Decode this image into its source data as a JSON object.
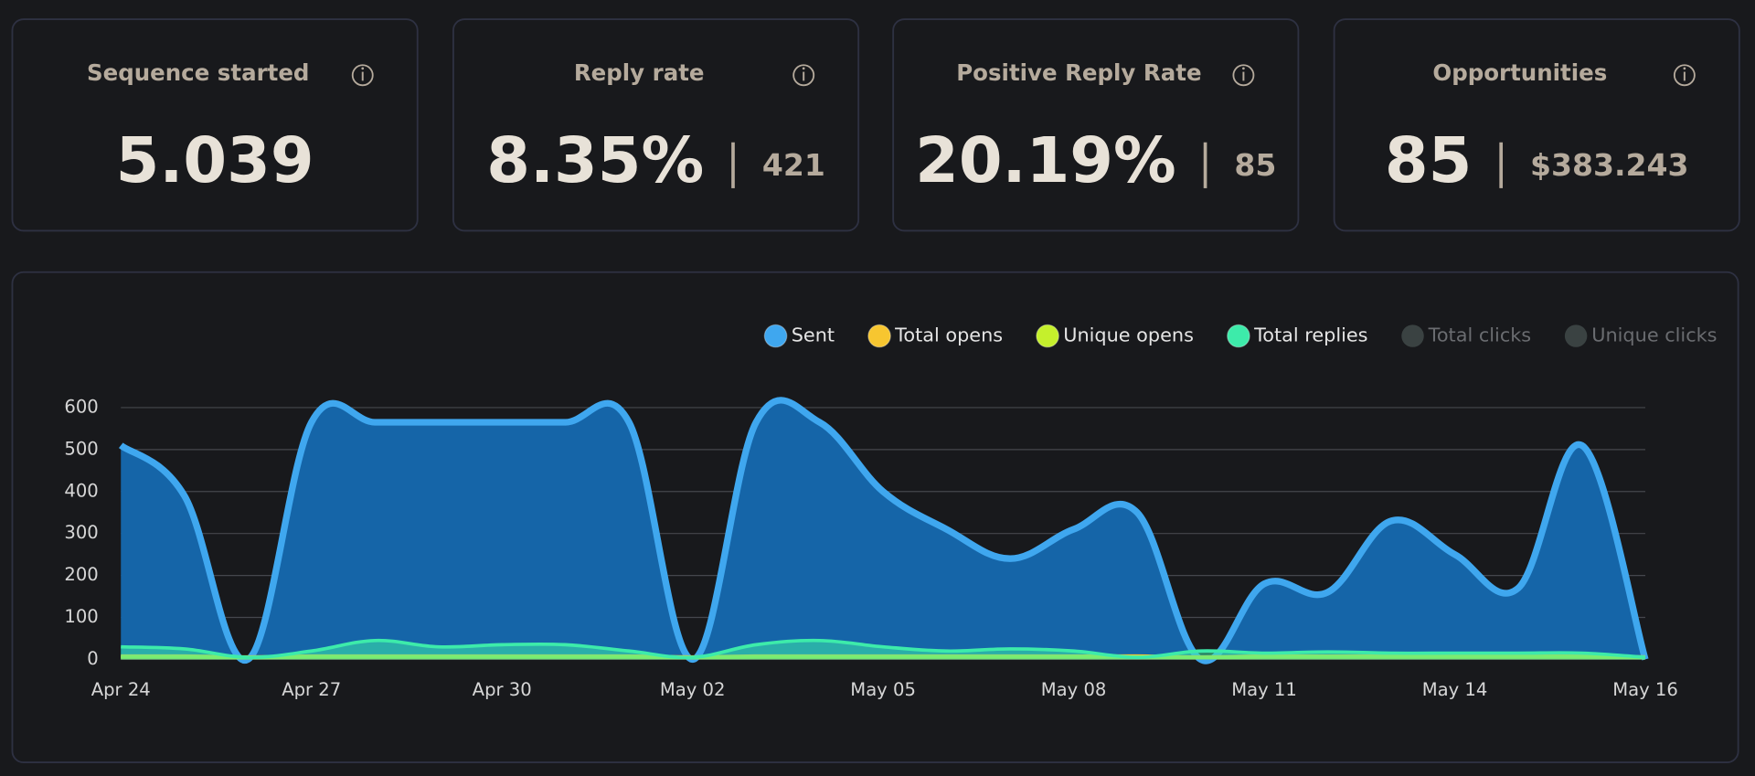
{
  "cards": [
    {
      "title": "Sequence started",
      "value": "5.039"
    },
    {
      "title": "Reply rate",
      "value": "8.35%",
      "secondary": "421"
    },
    {
      "title": "Positive Reply Rate",
      "value": "20.19%",
      "secondary": "85"
    },
    {
      "title": "Opportunities",
      "value": "85",
      "secondary": "$383.243"
    }
  ],
  "chart_data": {
    "type": "area",
    "categories": [
      "Apr 24",
      null,
      null,
      "Apr 27",
      null,
      null,
      "Apr 30",
      null,
      null,
      "May 02",
      null,
      null,
      "May 05",
      null,
      null,
      "May 08",
      null,
      null,
      "May 11",
      null,
      null,
      "May 14",
      null,
      null,
      "May 16"
    ],
    "series": [
      {
        "name": "Sent",
        "color": "#3fa7ef",
        "fill": "#1565a8",
        "values": [
          510,
          390,
          0,
          565,
          565,
          565,
          565,
          565,
          565,
          0,
          565,
          565,
          400,
          310,
          240,
          310,
          350,
          0,
          180,
          160,
          330,
          250,
          170,
          510,
          0
        ]
      },
      {
        "name": "Total opens",
        "color": "#f7c630",
        "values": [
          8,
          8,
          6,
          8,
          8,
          8,
          8,
          8,
          8,
          6,
          8,
          8,
          8,
          8,
          8,
          8,
          8,
          6,
          8,
          8,
          8,
          8,
          8,
          8,
          6
        ]
      },
      {
        "name": "Unique opens",
        "color": "#c5f02c",
        "values": [
          6,
          6,
          4,
          6,
          6,
          6,
          6,
          6,
          6,
          4,
          6,
          6,
          6,
          6,
          6,
          6,
          6,
          4,
          6,
          6,
          6,
          6,
          6,
          6,
          4
        ]
      },
      {
        "name": "Total replies",
        "color": "#3debaa",
        "values": [
          30,
          25,
          5,
          20,
          45,
          30,
          35,
          35,
          20,
          5,
          35,
          45,
          30,
          20,
          25,
          20,
          5,
          20,
          15,
          18,
          15,
          15,
          15,
          15,
          5
        ]
      },
      {
        "name": "Total clicks",
        "color": "#3a4242",
        "hidden": true
      },
      {
        "name": "Unique clicks",
        "color": "#3a4242",
        "hidden": true
      }
    ],
    "ylim": [
      0,
      600
    ],
    "yticks": [
      0,
      100,
      200,
      300,
      400,
      500,
      600
    ],
    "grid": true
  }
}
